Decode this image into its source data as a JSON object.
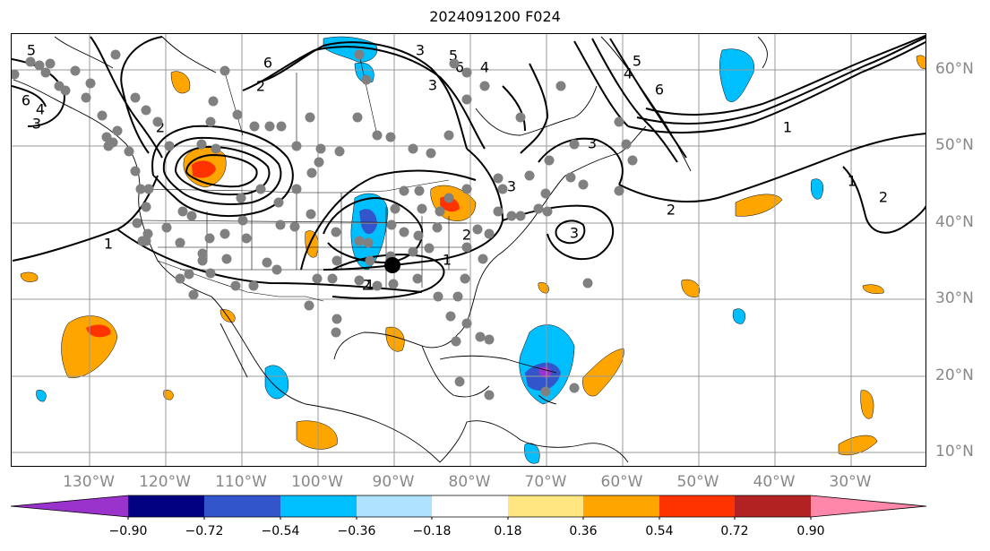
{
  "title": "2024091200 F024",
  "map": {
    "longitude_labels": [
      "130°W",
      "120°W",
      "110°W",
      "100°W",
      "90°W",
      "80°W",
      "70°W",
      "60°W",
      "50°W",
      "40°W",
      "30°W"
    ],
    "latitude_labels": [
      "60°N",
      "50°N",
      "40°N",
      "30°N",
      "20°N",
      "10°N"
    ],
    "grid": true,
    "contour_labels": [
      "5",
      "6",
      "4",
      "3",
      "2",
      "1",
      "6",
      "3",
      "5",
      "6",
      "4",
      "3",
      "2",
      "1",
      "1",
      "2",
      "3",
      "3",
      "2",
      "1",
      "1",
      "2",
      "3",
      "2",
      "6",
      "5",
      "4"
    ],
    "colors": {
      "contour": "#000000",
      "grid": "#999999",
      "coastline": "#000000",
      "station_marker": "#808080",
      "center_marker": "#000000"
    }
  },
  "colorbar": {
    "tick_labels": [
      "−0.90",
      "−0.72",
      "−0.54",
      "−0.36",
      "−0.18",
      "0.18",
      "0.36",
      "0.54",
      "0.72",
      "0.90"
    ],
    "colors": [
      "#9933cc",
      "#000080",
      "#3355cc",
      "#00bfff",
      "#aee2ff",
      "#ffffff",
      "#ffe680",
      "#ffa500",
      "#ff3300",
      "#b22222",
      "#ff88aa"
    ],
    "extend": "both"
  }
}
